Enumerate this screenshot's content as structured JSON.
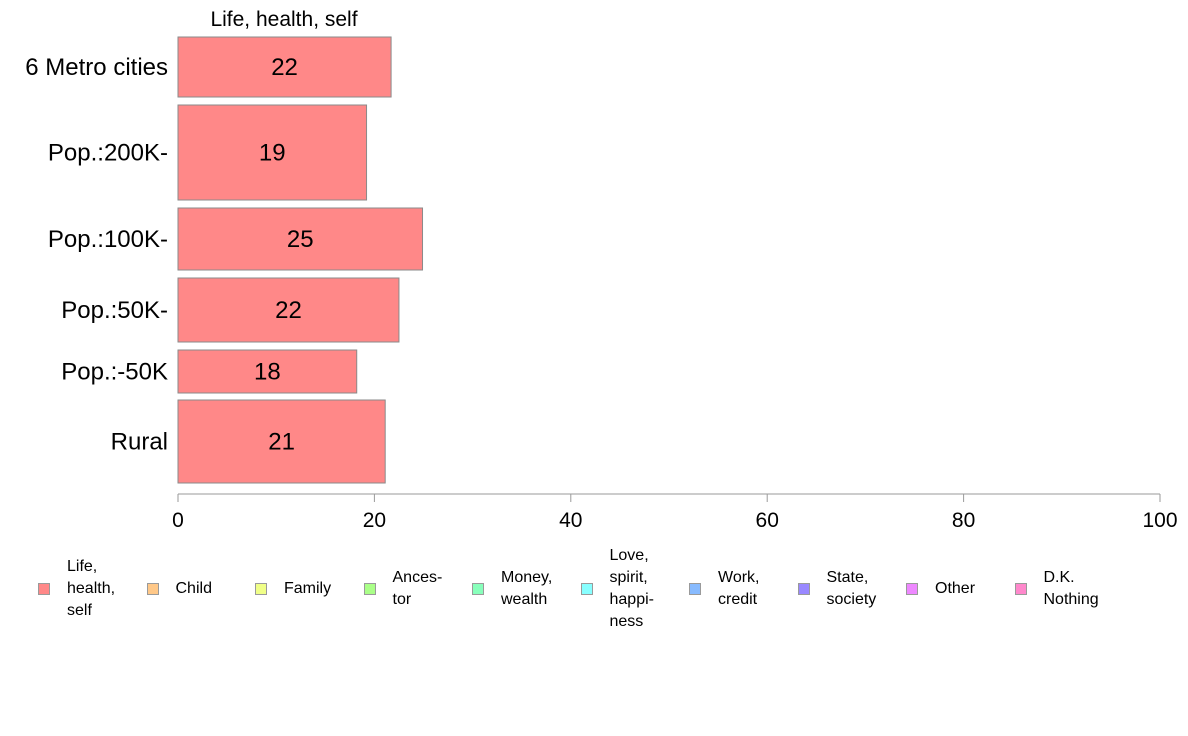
{
  "chart_data": {
    "type": "bar",
    "orientation": "horizontal",
    "stacked": true,
    "title": "Life, health, self",
    "xlabel": "",
    "ylabel": "",
    "xlim": [
      0,
      100
    ],
    "x_ticks": [
      "0",
      "20",
      "40",
      "60",
      "80",
      "100"
    ],
    "categories": [
      "6 Metro cities",
      "Pop.:200K-",
      "Pop.:100K-",
      "Pop.:50K-",
      "Pop.:-50K",
      "Rural"
    ],
    "series": [
      {
        "name": "Life, health, self",
        "color": "#ff8888",
        "values": [
          21.7,
          19.2,
          24.9,
          22.5,
          18.2,
          21.1
        ],
        "labels": [
          "22",
          "19",
          "25",
          "22",
          "18",
          "21"
        ]
      }
    ],
    "legend": {
      "placement": "bottom",
      "items": [
        {
          "label": "Life,\nhealth,\nself",
          "color": "#ff8888"
        },
        {
          "label": "Child",
          "color": "#ffc888"
        },
        {
          "label": "Family",
          "color": "#f0ff88"
        },
        {
          "label": "Ances-\ntor",
          "color": "#aaff88"
        },
        {
          "label": "Money,\nwealth",
          "color": "#88ffbb"
        },
        {
          "label": "Love,\nspirit,\nhappi-\nness",
          "color": "#88ffff"
        },
        {
          "label": "Work,\ncredit",
          "color": "#88bbff"
        },
        {
          "label": "State,\nsociety",
          "color": "#9988ff"
        },
        {
          "label": "Other",
          "color": "#ee88ff"
        },
        {
          "label": "D.K.\nNothing",
          "color": "#ff88cc"
        }
      ]
    }
  }
}
